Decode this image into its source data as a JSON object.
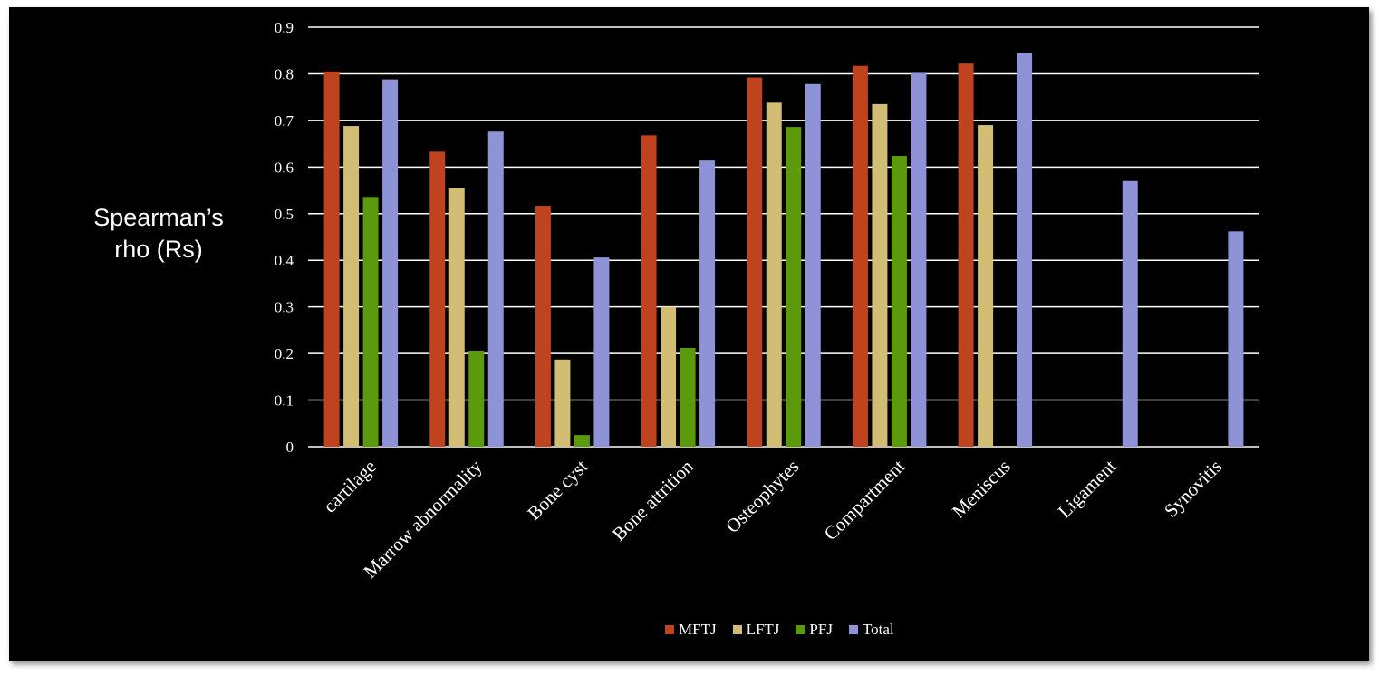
{
  "chart_data": {
    "type": "bar",
    "ylabel": "Spearman’s rho (Rs)",
    "ylabel_lines": [
      "Spearman’s",
      "rho (Rs)"
    ],
    "ylim": [
      0,
      0.9
    ],
    "yticks": [
      "0",
      "0.1",
      "0.2",
      "0.3",
      "0.4",
      "0.5",
      "0.6",
      "0.7",
      "0.8",
      "0.9"
    ],
    "grid": true,
    "legend_position": "bottom",
    "categories": [
      "cartilage",
      "Marrow abnormality",
      "Bone cyst",
      "Bone attrition",
      "Osteophytes",
      "Compartment",
      "Meniscus",
      "Ligament",
      "Synovitis"
    ],
    "series": [
      {
        "name": "MFTJ",
        "color": "#c0431f",
        "values": [
          0.805,
          0.633,
          0.517,
          0.668,
          0.792,
          0.817,
          0.822,
          null,
          null
        ]
      },
      {
        "name": "LFTJ",
        "color": "#d2bd74",
        "values": [
          0.688,
          0.554,
          0.187,
          0.3,
          0.738,
          0.735,
          0.69,
          null,
          null
        ]
      },
      {
        "name": "PFJ",
        "color": "#5a9a0c",
        "values": [
          0.536,
          0.206,
          0.025,
          0.212,
          0.686,
          0.624,
          null,
          null,
          null
        ]
      },
      {
        "name": "Total",
        "color": "#8e92d6",
        "values": [
          0.788,
          0.676,
          0.406,
          0.614,
          0.778,
          0.802,
          0.845,
          0.57,
          0.462
        ]
      }
    ]
  }
}
